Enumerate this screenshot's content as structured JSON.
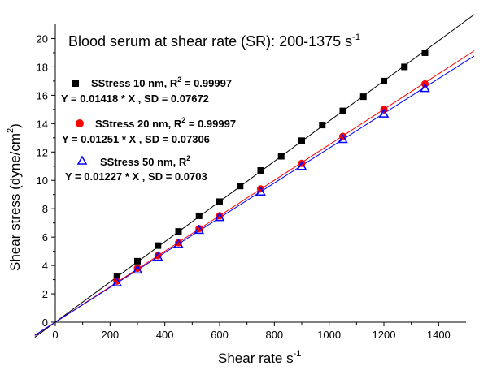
{
  "chart_data": {
    "type": "scatter",
    "title": "Blood serum at shear rate (SR): 200-1375 s",
    "title_superscript": "-1",
    "xlabel": "Shear rate s",
    "xlabel_superscript": "-1",
    "ylabel": "Shear stress (dyne/cm",
    "ylabel_superscript": "2",
    "ylabel_suffix": ")",
    "xlim": [
      0,
      1500
    ],
    "ylim": [
      0,
      21
    ],
    "x_ticks": [
      0,
      200,
      400,
      600,
      800,
      1000,
      1200,
      1400
    ],
    "y_ticks": [
      0,
      2,
      4,
      6,
      8,
      10,
      12,
      14,
      16,
      18,
      20
    ],
    "grid": false,
    "legend_position": "top-left",
    "series": [
      {
        "name": "SStress 10 nm",
        "r2_text": ", R",
        "r2_value": " = 0.99997",
        "equation": "Y = 0.01418 * X  ,  SD = 0.07672",
        "slope": 0.01418,
        "marker": "square",
        "color": "#000000",
        "line_color": "#000000",
        "x": [
          225,
          300,
          375,
          450,
          525,
          600,
          675,
          750,
          825,
          900,
          975,
          1050,
          1125,
          1200,
          1275,
          1350
        ],
        "y": [
          3.2,
          4.3,
          5.4,
          6.4,
          7.5,
          8.5,
          9.6,
          10.7,
          11.7,
          12.8,
          13.9,
          14.9,
          15.9,
          17.0,
          18.0,
          19.0
        ]
      },
      {
        "name": "SStress 20 nm",
        "r2_text": ", R",
        "r2_value": " = 0.99997",
        "equation": "Y = 0.01251 * X  ,  SD = 0.07306",
        "slope": 0.01251,
        "marker": "circle",
        "color": "#ff0000",
        "line_color": "#ff0000",
        "x": [
          225,
          300,
          375,
          450,
          525,
          600,
          750,
          900,
          1050,
          1200,
          1350
        ],
        "y": [
          2.9,
          3.8,
          4.7,
          5.6,
          6.6,
          7.5,
          9.4,
          11.2,
          13.1,
          15.0,
          16.8
        ]
      },
      {
        "name": "SStress 50 nm",
        "r2_text": ", R",
        "r2_value": "",
        "equation": "Y = 0.01227 * X  ,  SD = 0.0703",
        "slope": 0.01227,
        "marker": "triangle",
        "color": "#0000ff",
        "line_color": "#0000ff",
        "x": [
          225,
          300,
          375,
          450,
          525,
          600,
          750,
          900,
          1050,
          1200,
          1350
        ],
        "y": [
          2.8,
          3.7,
          4.6,
          5.5,
          6.5,
          7.4,
          9.2,
          11.0,
          12.9,
          14.7,
          16.5
        ]
      }
    ]
  }
}
